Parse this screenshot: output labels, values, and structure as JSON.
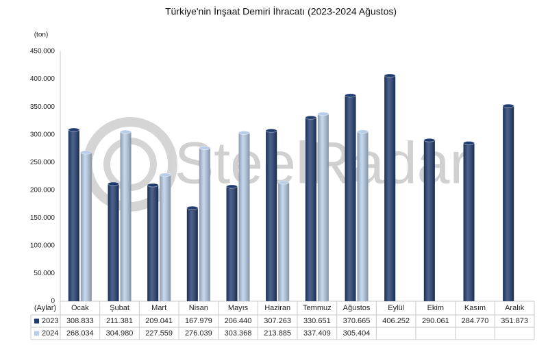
{
  "chart_data": {
    "type": "bar",
    "title": "Türkiye'nin İnşaat Demiri İhracatı (2023-2024 Ağustos)",
    "y_label": "(ton)",
    "x_label": "(Aylar)",
    "watermark": "SteelRadar",
    "categories": [
      "Ocak",
      "Şubat",
      "Mart",
      "Nisan",
      "Mayıs",
      "Haziran",
      "Temmuz",
      "Ağustos",
      "Eylül",
      "Ekim",
      "Kasım",
      "Aralık"
    ],
    "series": [
      {
        "name": "2023",
        "color": "#1f3b6e",
        "values": [
          308833,
          211381,
          209041,
          167979,
          206440,
          307263,
          330651,
          370665,
          406252,
          290061,
          284770,
          351873
        ],
        "value_labels": [
          "308.833",
          "211.381",
          "209.041",
          "167.979",
          "206.440",
          "307.263",
          "330.651",
          "370.665",
          "406.252",
          "290.061",
          "284.770",
          "351.873"
        ]
      },
      {
        "name": "2024",
        "color": "#b9cde8",
        "values": [
          268034,
          304980,
          227559,
          276039,
          303368,
          213885,
          337409,
          305404,
          null,
          null,
          null,
          null
        ],
        "value_labels": [
          "268.034",
          "304.980",
          "227.559",
          "276.039",
          "303.368",
          "213.885",
          "337.409",
          "305.404",
          null,
          null,
          null,
          null
        ]
      }
    ],
    "ylim": [
      0,
      450000
    ],
    "yticks": [
      {
        "value": 0,
        "label": "0"
      },
      {
        "value": 50000,
        "label": "50.000"
      },
      {
        "value": 100000,
        "label": "100.000"
      },
      {
        "value": 150000,
        "label": "150.000"
      },
      {
        "value": 200000,
        "label": "200.000"
      },
      {
        "value": 250000,
        "label": "250.000"
      },
      {
        "value": 300000,
        "label": "300.000"
      },
      {
        "value": 350000,
        "label": "350.000"
      },
      {
        "value": 400000,
        "label": "400.000"
      },
      {
        "value": 450000,
        "label": "450.000"
      }
    ],
    "grid": false
  }
}
